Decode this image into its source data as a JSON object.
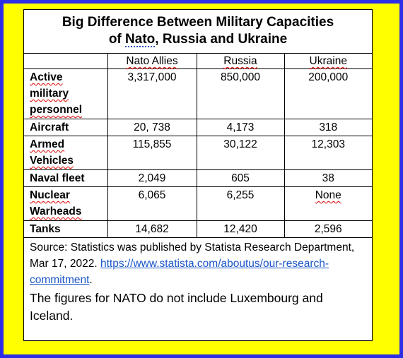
{
  "colors": {
    "outer_border": "#2e2ee6",
    "frame_background": "#ffff00",
    "card_background": "#ffffff",
    "link": "#1a55c8"
  },
  "title": {
    "line1": "Big Difference Between Military Capacities",
    "line2_prefix": "of ",
    "line2_nato": "Nato",
    "line2_suffix": ", Russia and Ukraine"
  },
  "table": {
    "columns": [
      "",
      "Nato Allies",
      "Russia",
      "Ukraine"
    ],
    "rows": [
      {
        "label": "Active military personnel",
        "nato": "3,317,000",
        "russia": "850,000",
        "ukraine": "200,000"
      },
      {
        "label": "Aircraft",
        "nato": "20, 738",
        "russia": "4,173",
        "ukraine": "318"
      },
      {
        "label": "Armed Vehicles",
        "nato": "115,855",
        "russia": "30,122",
        "ukraine": "12,303"
      },
      {
        "label": "Naval fleet",
        "nato": "2,049",
        "russia": "605",
        "ukraine": "38"
      },
      {
        "label": "Nuclear Warheads",
        "nato": "6,065",
        "russia": "6,255",
        "ukraine": "None"
      },
      {
        "label": "Tanks",
        "nato": "14,682",
        "russia": "12,420",
        "ukraine": "2,596"
      }
    ]
  },
  "source": {
    "text": "Source: Statistics was published by Statista Research Department, Mar 17, 2022.",
    "link_text": "https://www.statista.com/aboutus/our-research-commitment",
    "after_link": ".",
    "note": "The figures for NATO do not include Luxembourg and Iceland."
  }
}
